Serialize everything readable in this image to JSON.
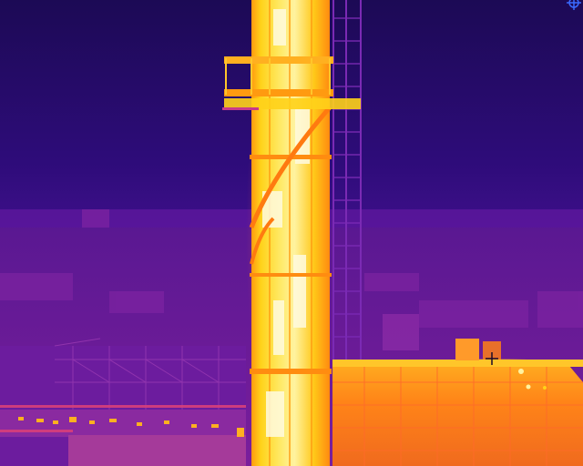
{
  "image": {
    "kind": "thermal infrared photograph",
    "palette": "ironbow",
    "subjects": [
      "chimney-stack",
      "cage-ladder",
      "storage-dome",
      "industrial-buildings"
    ],
    "colors": {
      "sky_top": "#1f0a5a",
      "sky_mid": "#3b0f8c",
      "haze": "#6a1aa8",
      "ground": "#5e1894",
      "hot_white": "#fff6b0",
      "hot_yellow": "#ffd21a",
      "warm_orange": "#ff9a10",
      "warm_red": "#e6502a",
      "cool_magenta": "#b4207a"
    },
    "crosshair": "crosshair-marker-icon",
    "corner_icon": "reticle-icon"
  }
}
